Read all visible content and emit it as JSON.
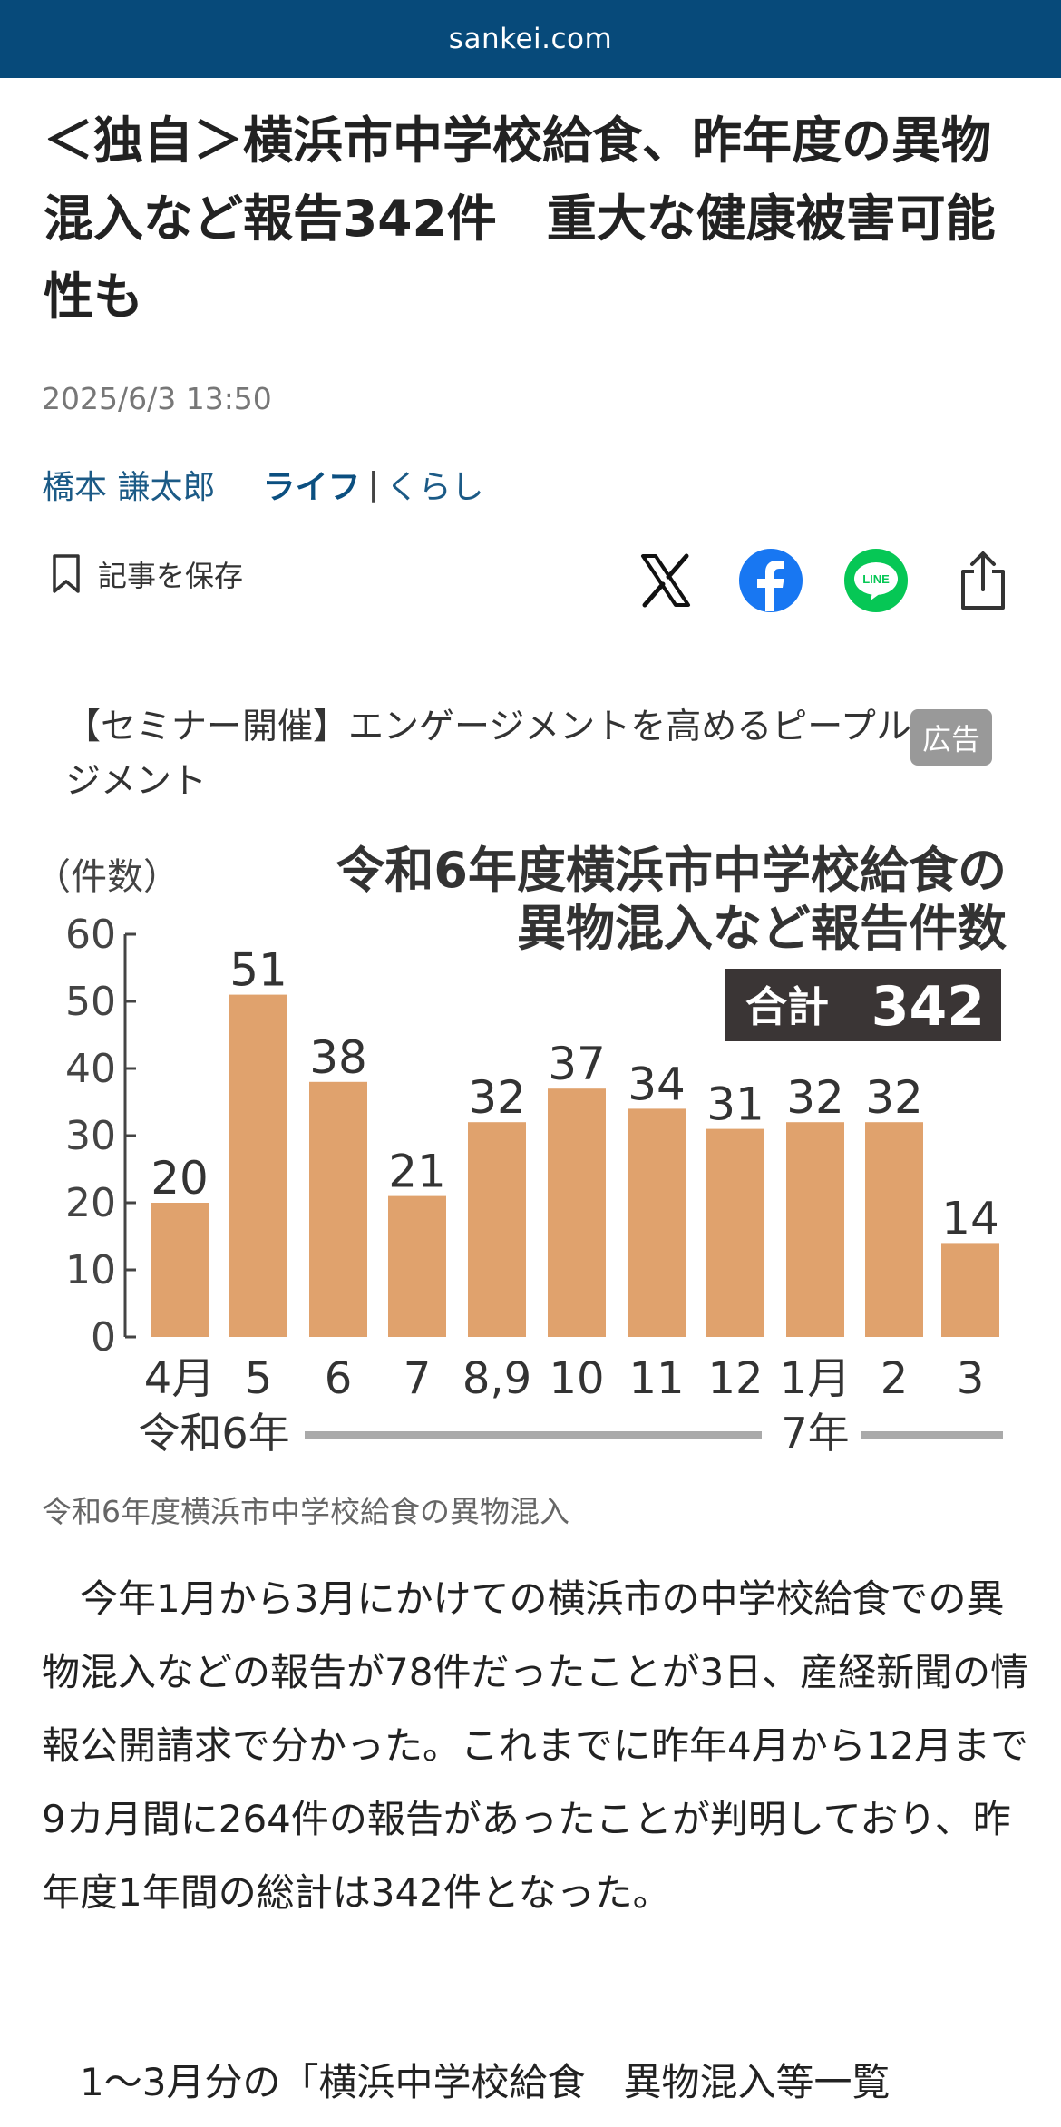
{
  "site": {
    "domain": "sankei.com"
  },
  "article": {
    "headline": "＜独自＞横浜市中学校給食、昨年度の異物混入など報告342件　重大な健康被害可能性も",
    "date": "2025/6/3 13:50",
    "author": "橋本 謙太郎",
    "category": "ライフ",
    "separator": "|",
    "subcategory": "くらし",
    "save_label": "記事を保存",
    "caption": "令和6年度横浜市中学校給食の異物混入",
    "paragraph1": "　今年1月から3月にかけての横浜市の中学校給食での異物混入などの報告が78件だったことが3日、産経新聞の情報公開請求で分かった。これまでに昨年4月から12月まで9カ月間に264件の報告があったことが判明しており、昨年度1年間の総計は342件となった。",
    "paragraph2": "　1～3月分の「横浜中学校給食　異物混入等一覧"
  },
  "share": {
    "x_icon": "x-logo-icon",
    "facebook_icon": "facebook-icon",
    "line_icon": "line-icon",
    "share_icon": "share-icon",
    "line_text": "LINE",
    "facebook_color": "#1877f2",
    "line_color": "#06c755"
  },
  "ad": {
    "text": "【セミナー開催】エンゲージメントを高めるピープルマネジメント",
    "badge": "広告"
  },
  "chart_data": {
    "type": "bar",
    "title_line1": "令和6年度横浜市中学校給食の",
    "title_line2": "異物混入など報告件数",
    "total_label": "合計",
    "total_value": "342",
    "ylabel": "（件数）",
    "ylim": [
      0,
      60
    ],
    "yticks": [
      "0",
      "10",
      "20",
      "30",
      "40",
      "50",
      "60"
    ],
    "categories": [
      "4月",
      "5",
      "6",
      "7",
      "8,9",
      "10",
      "11",
      "12",
      "1月",
      "2",
      "3"
    ],
    "values": [
      20,
      51,
      38,
      21,
      32,
      37,
      34,
      31,
      32,
      32,
      14
    ],
    "era_labels": [
      "令和6年",
      "7年"
    ],
    "bar_color": "#e0a26d",
    "axis_color": "#444444",
    "era_line_color": "#aaaaaa"
  }
}
